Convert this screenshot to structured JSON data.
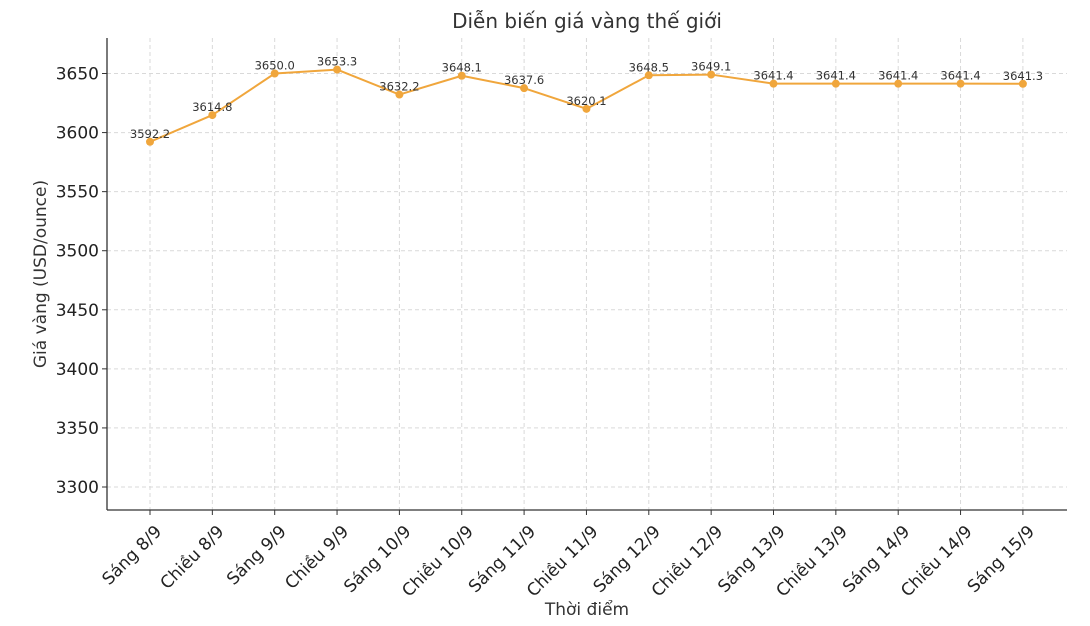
{
  "chart_data": {
    "type": "line",
    "title": "Diễn biến giá vàng thế giới",
    "xlabel": "Thời điểm",
    "ylabel": "Giá vàng (USD/ounce)",
    "categories": [
      "Sáng 8/9",
      "Chiều 8/9",
      "Sáng 9/9",
      "Chiều 9/9",
      "Sáng 10/9",
      "Chiều 10/9",
      "Sáng 11/9",
      "Chiều 11/9",
      "Sáng 12/9",
      "Chiều 12/9",
      "Sáng 13/9",
      "Chiều 13/9",
      "Sáng 14/9",
      "Chiều 14/9",
      "Sáng 15/9"
    ],
    "values": [
      3592.2,
      3614.8,
      3650.0,
      3653.3,
      3632.2,
      3648.1,
      3637.6,
      3620.1,
      3648.5,
      3649.1,
      3641.4,
      3641.4,
      3641.4,
      3641.4,
      3641.3
    ],
    "data_labels": [
      "3592.2",
      "3614.8",
      "3650.0",
      "3653.3",
      "3632.2",
      "3648.1",
      "3637.6",
      "3620.1",
      "3648.5",
      "3649.1",
      "3641.4",
      "3641.4",
      "3641.4",
      "3641.4",
      "3641.3"
    ],
    "yticks": [
      "3300",
      "3350",
      "3400",
      "3450",
      "3500",
      "3550",
      "3600",
      "3650"
    ],
    "ylim": [
      3280,
      3680
    ],
    "grid": true,
    "line_color": "#f0a63c"
  }
}
